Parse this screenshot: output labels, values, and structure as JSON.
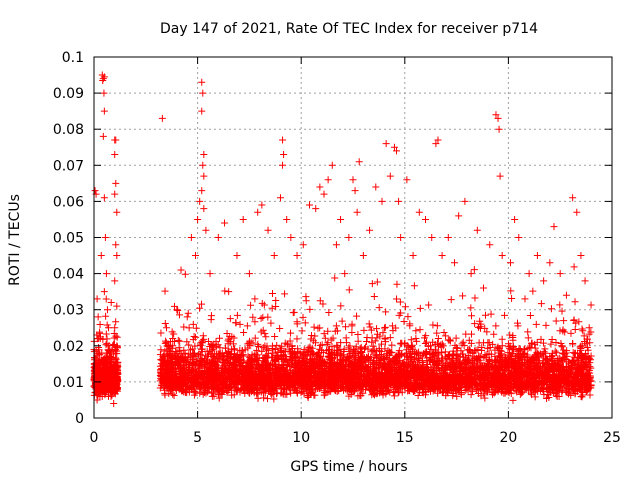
{
  "chart_data": {
    "type": "scatter",
    "title": "Day 147 of 2021, Rate Of TEC Index for receiver p714",
    "xlabel": "GPS time / hours",
    "ylabel": "ROTI / TECUs",
    "xlim": [
      0,
      25
    ],
    "ylim": [
      0,
      0.1
    ],
    "x_ticks": [
      "0",
      "5",
      "10",
      "15",
      "20",
      "25"
    ],
    "y_ticks": [
      "0",
      "0.01",
      "0.02",
      "0.03",
      "0.04",
      "0.05",
      "0.06",
      "0.07",
      "0.08",
      "0.09",
      "0.1"
    ],
    "grid": true,
    "marker": "+",
    "color": "#ff0000",
    "series": [
      {
        "points": [
          [
            0.05,
            0.063
          ],
          [
            0.1,
            0.062
          ],
          [
            0.15,
            0.033
          ],
          [
            0.2,
            0.012
          ],
          [
            0.3,
            0.008
          ],
          [
            0.35,
            0.045
          ],
          [
            0.4,
            0.095
          ],
          [
            0.45,
            0.094
          ],
          [
            0.5,
            0.0945
          ],
          [
            0.42,
            0.0935
          ],
          [
            0.48,
            0.09
          ],
          [
            0.5,
            0.085
          ],
          [
            0.45,
            0.078
          ],
          [
            0.5,
            0.061
          ],
          [
            0.55,
            0.05
          ],
          [
            0.6,
            0.04
          ],
          [
            0.5,
            0.035
          ],
          [
            0.65,
            0.03
          ],
          [
            0.7,
            0.025
          ],
          [
            0.3,
            0.022
          ],
          [
            0.25,
            0.018
          ],
          [
            0.6,
            0.015
          ],
          [
            0.8,
            0.012
          ],
          [
            0.9,
            0.02
          ],
          [
            1.0,
            0.077
          ],
          [
            1.05,
            0.077
          ],
          [
            1.0,
            0.073
          ],
          [
            1.05,
            0.065
          ],
          [
            1.0,
            0.062
          ],
          [
            1.1,
            0.057
          ],
          [
            1.05,
            0.048
          ],
          [
            1.1,
            0.045
          ],
          [
            1.0,
            0.038
          ],
          [
            1.1,
            0.031
          ],
          [
            1.0,
            0.025
          ],
          [
            1.1,
            0.02
          ],
          [
            1.0,
            0.014
          ],
          [
            1.1,
            0.008
          ],
          [
            0.2,
            0.028
          ],
          [
            0.15,
            0.005
          ],
          [
            0.7,
            0.006
          ],
          [
            0.95,
            0.004
          ],
          [
            3.3,
            0.083
          ],
          [
            3.5,
            0.025
          ],
          [
            3.8,
            0.02
          ],
          [
            4.0,
            0.03
          ],
          [
            4.2,
            0.041
          ],
          [
            4.5,
            0.028
          ],
          [
            4.7,
            0.05
          ],
          [
            4.9,
            0.045
          ],
          [
            5.0,
            0.055
          ],
          [
            5.1,
            0.06
          ],
          [
            5.2,
            0.093
          ],
          [
            5.25,
            0.09
          ],
          [
            5.2,
            0.085
          ],
          [
            5.3,
            0.073
          ],
          [
            5.25,
            0.07
          ],
          [
            5.3,
            0.067
          ],
          [
            5.2,
            0.063
          ],
          [
            5.3,
            0.058
          ],
          [
            5.4,
            0.052
          ],
          [
            5.6,
            0.04
          ],
          [
            6.0,
            0.05
          ],
          [
            6.3,
            0.054
          ],
          [
            6.5,
            0.035
          ],
          [
            6.9,
            0.045
          ],
          [
            7.2,
            0.055
          ],
          [
            7.5,
            0.04
          ],
          [
            7.9,
            0.057
          ],
          [
            8.1,
            0.059
          ],
          [
            8.4,
            0.052
          ],
          [
            8.7,
            0.045
          ],
          [
            9.0,
            0.061
          ],
          [
            9.1,
            0.077
          ],
          [
            9.15,
            0.073
          ],
          [
            9.1,
            0.07
          ],
          [
            9.3,
            0.055
          ],
          [
            9.5,
            0.05
          ],
          [
            9.8,
            0.045
          ],
          [
            10.1,
            0.048
          ],
          [
            10.4,
            0.059
          ],
          [
            10.7,
            0.058
          ],
          [
            10.9,
            0.064
          ],
          [
            11.1,
            0.062
          ],
          [
            11.3,
            0.066
          ],
          [
            11.5,
            0.07
          ],
          [
            11.7,
            0.048
          ],
          [
            11.9,
            0.055
          ],
          [
            12.1,
            0.04
          ],
          [
            12.3,
            0.05
          ],
          [
            12.5,
            0.066
          ],
          [
            12.6,
            0.063
          ],
          [
            12.7,
            0.057
          ],
          [
            12.8,
            0.071
          ],
          [
            13.0,
            0.045
          ],
          [
            13.3,
            0.052
          ],
          [
            13.6,
            0.064
          ],
          [
            13.9,
            0.06
          ],
          [
            14.1,
            0.076
          ],
          [
            14.3,
            0.067
          ],
          [
            14.5,
            0.075
          ],
          [
            14.6,
            0.074
          ],
          [
            14.7,
            0.06
          ],
          [
            14.8,
            0.05
          ],
          [
            15.1,
            0.066
          ],
          [
            15.4,
            0.045
          ],
          [
            15.7,
            0.057
          ],
          [
            16.0,
            0.055
          ],
          [
            16.3,
            0.05
          ],
          [
            16.5,
            0.076
          ],
          [
            16.6,
            0.077
          ],
          [
            16.8,
            0.045
          ],
          [
            17.1,
            0.05
          ],
          [
            17.4,
            0.043
          ],
          [
            17.6,
            0.056
          ],
          [
            17.9,
            0.06
          ],
          [
            18.2,
            0.04
          ],
          [
            18.5,
            0.052
          ],
          [
            18.8,
            0.036
          ],
          [
            19.1,
            0.048
          ],
          [
            19.4,
            0.084
          ],
          [
            19.5,
            0.083
          ],
          [
            19.55,
            0.08
          ],
          [
            19.6,
            0.067
          ],
          [
            19.7,
            0.045
          ],
          [
            20.1,
            0.043
          ],
          [
            20.3,
            0.055
          ],
          [
            20.5,
            0.05
          ],
          [
            20.8,
            0.033
          ],
          [
            21.0,
            0.04
          ],
          [
            21.4,
            0.045
          ],
          [
            21.7,
            0.038
          ],
          [
            22.0,
            0.043
          ],
          [
            22.2,
            0.053
          ],
          [
            22.5,
            0.04
          ],
          [
            22.8,
            0.034
          ],
          [
            23.1,
            0.061
          ],
          [
            23.3,
            0.057
          ],
          [
            23.5,
            0.045
          ],
          [
            23.7,
            0.038
          ],
          [
            23.9,
            0.025
          ]
        ]
      }
    ]
  }
}
